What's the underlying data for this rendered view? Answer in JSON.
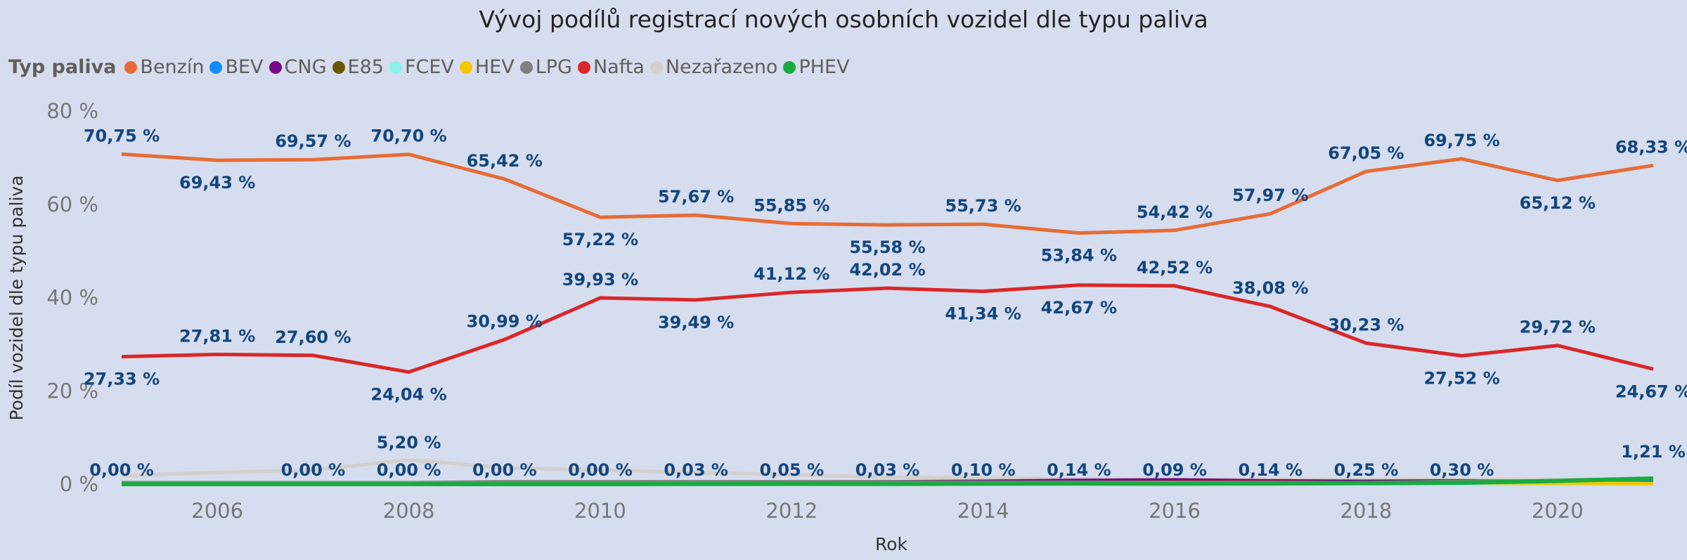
{
  "chart_data": {
    "type": "line",
    "title": "Vývoj podílů registrací nových osobních vozidel dle typu paliva",
    "xlabel": "Rok",
    "ylabel": "Podíl vozidel dle typu paliva",
    "legend_title": "Typ paliva",
    "legend_position": "top-left",
    "grid": false,
    "ylim": [
      0,
      80
    ],
    "y_ticks": [
      "0 %",
      "20 %",
      "40 %",
      "60 %",
      "80 %"
    ],
    "x_ticks": [
      "2006",
      "2008",
      "2010",
      "2012",
      "2014",
      "2016",
      "2018",
      "2020"
    ],
    "x": [
      2005,
      2006,
      2007,
      2008,
      2009,
      2010,
      2011,
      2012,
      2013,
      2014,
      2015,
      2016,
      2017,
      2018,
      2019,
      2020,
      2021
    ],
    "series": [
      {
        "name": "Benzín",
        "color": "#e66c37",
        "values": [
          70.75,
          69.43,
          69.57,
          70.7,
          65.42,
          57.22,
          57.67,
          55.85,
          55.58,
          55.73,
          53.84,
          54.42,
          57.97,
          67.05,
          69.75,
          65.12,
          68.33
        ],
        "labels": [
          "70,75 %",
          "69,43 %",
          "69,57 %",
          "70,70 %",
          "65,42 %",
          "57,22 %",
          "57,67 %",
          "55,85 %",
          "55,58 %",
          "55,73 %",
          "53,84 %",
          "54,42 %",
          "57,97 %",
          "67,05 %",
          "69,75 %",
          "65,12 %",
          "68,33 %"
        ]
      },
      {
        "name": "BEV",
        "color": "#118dff",
        "values": [
          0,
          0,
          0,
          0,
          0,
          0,
          0,
          0.01,
          0.02,
          0.03,
          0.05,
          0.06,
          0.1,
          0.15,
          0.25,
          0.5,
          0.9
        ],
        "labels": []
      },
      {
        "name": "CNG",
        "color": "#750985",
        "values": [
          0.05,
          0.05,
          0.05,
          0.05,
          0.1,
          0.2,
          0.3,
          0.4,
          0.5,
          0.6,
          0.8,
          0.9,
          0.7,
          0.6,
          0.7,
          0.5,
          0.3
        ],
        "labels": []
      },
      {
        "name": "E85",
        "color": "#6b5700",
        "values": [
          0,
          0,
          0,
          0,
          0.05,
          0.1,
          0.05,
          0.02,
          0.01,
          0,
          0,
          0,
          0,
          0,
          0,
          0,
          0
        ],
        "labels": []
      },
      {
        "name": "FCEV",
        "color": "#8af2e6",
        "values": [
          0,
          0,
          0,
          0,
          0,
          0,
          0,
          0,
          0,
          0,
          0,
          0,
          0,
          0,
          0,
          0,
          0
        ],
        "labels": []
      },
      {
        "name": "HEV",
        "color": "#f5c700",
        "values": [
          0.05,
          0.05,
          0.05,
          0.1,
          0.1,
          0.1,
          0.1,
          0.1,
          0.1,
          0.15,
          0.2,
          0.3,
          0.3,
          0.3,
          0.3,
          0.2,
          0.1
        ],
        "labels": []
      },
      {
        "name": "LPG",
        "color": "#7f7f7f",
        "values": [
          0.3,
          0.3,
          0.3,
          0.3,
          0.5,
          0.5,
          0.5,
          0.5,
          0.5,
          0.4,
          0.4,
          0.3,
          0.3,
          0.3,
          0.6,
          0.7,
          0.9
        ],
        "labels": []
      },
      {
        "name": "Nafta",
        "color": "#d9272a",
        "values": [
          27.33,
          27.81,
          27.6,
          24.04,
          30.99,
          39.93,
          39.49,
          41.12,
          42.02,
          41.34,
          42.67,
          42.52,
          38.08,
          30.23,
          27.52,
          29.72,
          24.67
        ],
        "labels": [
          "27,33 %",
          "27,81 %",
          "27,60 %",
          "24,04 %",
          "30,99 %",
          "39,93 %",
          "39,49 %",
          "41,12 %",
          "42,02 %",
          "41,34 %",
          "42,67 %",
          "42,52 %",
          "38,08 %",
          "30,23 %",
          "27,52 %",
          "29,72 %",
          "24,67 %"
        ]
      },
      {
        "name": "Nezařazeno",
        "color": "#d3cfcc",
        "values": [
          1.8,
          2.5,
          3.0,
          5.2,
          3.5,
          3.0,
          2.5,
          2.0,
          1.5,
          1.3,
          1.2,
          1.1,
          1.0,
          1.0,
          1.0,
          1.0,
          1.0
        ],
        "labels": [
          null,
          null,
          null,
          "5,20 %",
          null,
          null,
          null,
          null,
          null,
          null,
          null,
          null,
          null,
          null,
          null,
          null,
          null
        ]
      },
      {
        "name": "PHEV",
        "color": "#1aab40",
        "values": [
          0.0,
          0.0,
          0.0,
          0.0,
          0.0,
          0.0,
          0.03,
          0.05,
          0.03,
          0.1,
          0.14,
          0.09,
          0.14,
          0.25,
          0.3,
          0.7,
          1.21
        ],
        "labels": [
          "0,00 %",
          null,
          "0,00 %",
          "0,00 %",
          "0,00 %",
          "0,00 %",
          "0,03 %",
          "0,05 %",
          "0,03 %",
          "0,10 %",
          "0,14 %",
          "0,09 %",
          "0,14 %",
          "0,25 %",
          "0,30 %",
          null,
          "1,21 %"
        ]
      }
    ]
  }
}
